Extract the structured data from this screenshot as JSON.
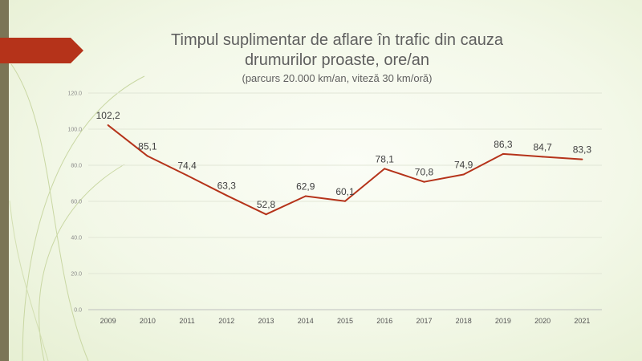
{
  "slide": {
    "title_line1": "Timpul suplimentar de aflare în trafic din cauza",
    "title_line2": "drumurilor proaste, ore/an",
    "subtitle": "(parcurs 20.000 km/an, viteză 30 km/oră)",
    "accent_color": "#b5331a",
    "sidebar_color": "#7b7556"
  },
  "chart_data": {
    "type": "line",
    "title": "Timpul suplimentar de aflare în trafic din cauza drumurilor proaste, ore/an",
    "subtitle": "(parcurs 20.000 km/an, viteză 30 km/oră)",
    "categories": [
      "2009",
      "2010",
      "2011",
      "2012",
      "2013",
      "2014",
      "2015",
      "2016",
      "2017",
      "2018",
      "2019",
      "2020",
      "2021"
    ],
    "values": [
      102.2,
      85.1,
      74.4,
      63.3,
      52.8,
      62.9,
      60.1,
      78.1,
      70.8,
      74.9,
      86.3,
      84.7,
      83.3
    ],
    "data_labels": [
      "102,2",
      "85,1",
      "74,4",
      "63,3",
      "52,8",
      "62,9",
      "60,1",
      "78,1",
      "70,8",
      "74,9",
      "86,3",
      "84,7",
      "83,3"
    ],
    "ylim": [
      0,
      120
    ],
    "yticks": [
      "0.0",
      "20.0",
      "40.0",
      "60.0",
      "80.0",
      "100.0",
      "120.0"
    ],
    "ytick_values": [
      0,
      20,
      40,
      60,
      80,
      100,
      120
    ],
    "line_color": "#b5331a",
    "grid": true,
    "legend": "none",
    "xlabel": "",
    "ylabel": ""
  }
}
